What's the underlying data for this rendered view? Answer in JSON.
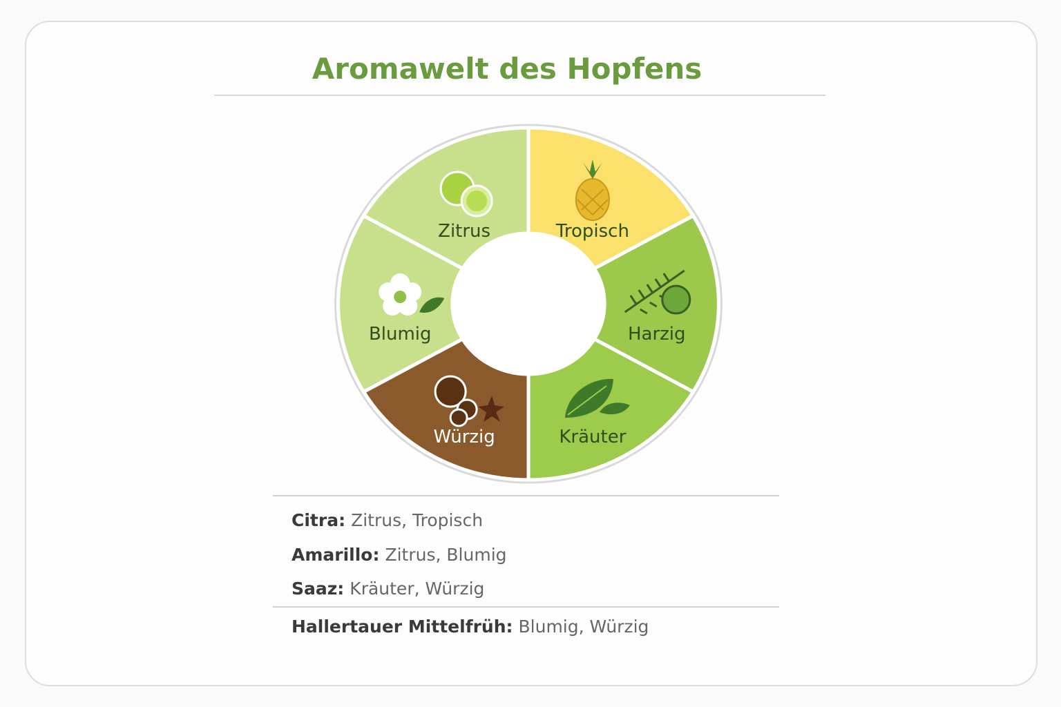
{
  "title": "Aromawelt des Hopfens",
  "wheel": {
    "segments": [
      {
        "label": "Zitrus",
        "color": "#c8df8c"
      },
      {
        "label": "Tropisch",
        "color": "#fbe16c"
      },
      {
        "label": "Harzig",
        "color": "#9cc94c"
      },
      {
        "label": "Kräuter",
        "color": "#9dcb4b"
      },
      {
        "label": "Würzig",
        "color": "#8a5a2c"
      },
      {
        "label": "Blumig",
        "color": "#c8df8c"
      }
    ]
  },
  "hops": [
    {
      "name": "Citra:",
      "aromas": "Zitrus, Tropisch"
    },
    {
      "name": "Amarillo:",
      "aromas": "Zitrus, Blumig"
    },
    {
      "name": "Saaz:",
      "aromas": "Kräuter, Würzig"
    },
    {
      "name": "Hallertauer Mittelfrüh:",
      "aromas": "Blumig, Würzig"
    }
  ]
}
